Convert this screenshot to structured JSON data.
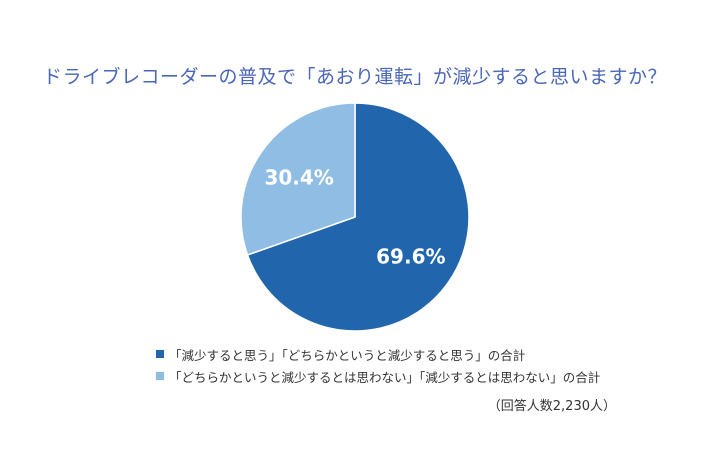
{
  "chart_data": {
    "type": "pie",
    "title": "ドライブレコーダーの普及で「あおり運転」が減少すると思いますか？",
    "slices": [
      {
        "label": "「減少すると思う」「どちらかというと減少すると思う」の合計",
        "value": 69.6,
        "value_label": "69.6%",
        "color": "#2166ac"
      },
      {
        "label": "「どちらかというと減少するとは思わない」「減少するとは思わない」の合計",
        "value": 30.4,
        "value_label": "30.4%",
        "color": "#8fbde3"
      }
    ],
    "legend_position": "bottom-left",
    "note": "（回答人数2,230人）"
  }
}
